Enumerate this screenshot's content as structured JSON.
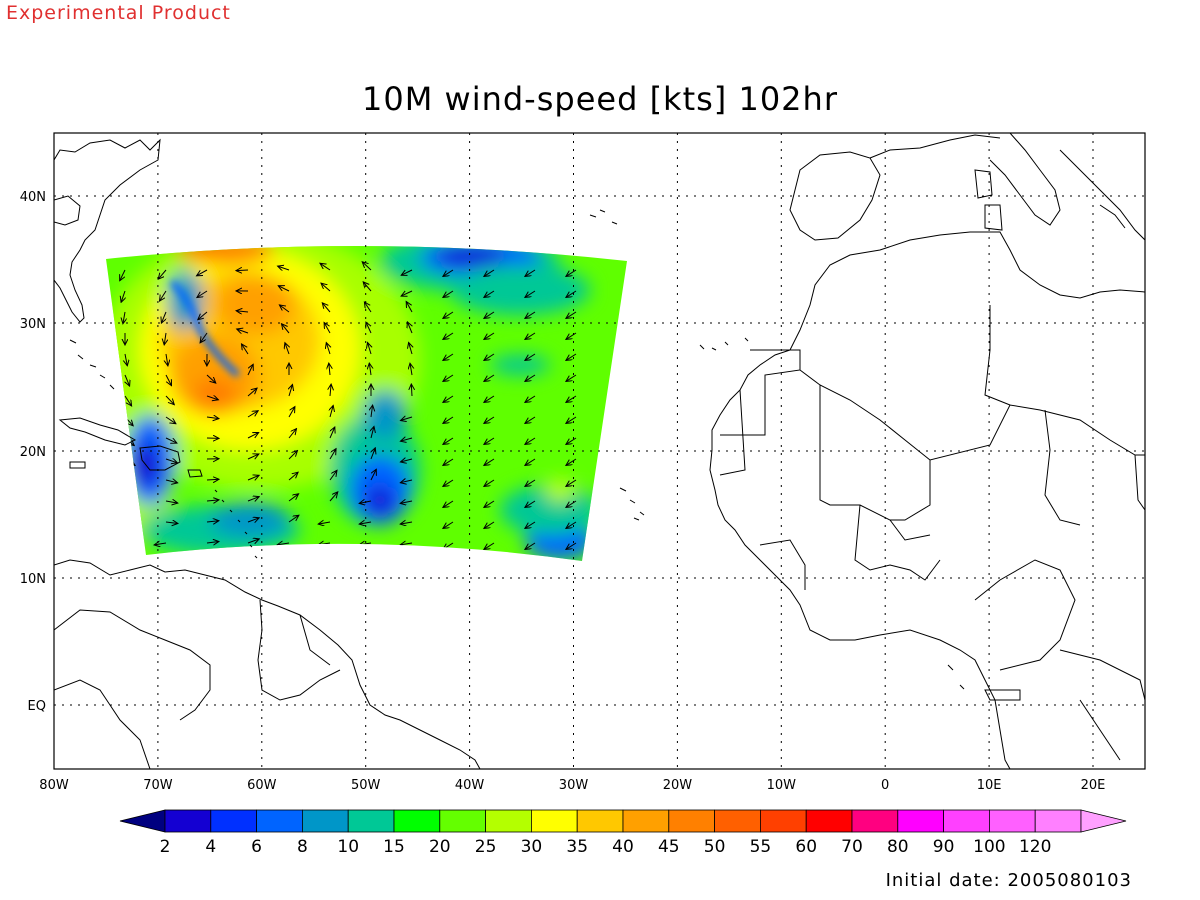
{
  "header": {
    "experimental": "Experimental Product"
  },
  "title": "10M wind-speed [kts] 102hr",
  "footer": {
    "initial_date": "Initial date: 2005080103"
  },
  "axes": {
    "lon_labels": [
      "80W",
      "70W",
      "60W",
      "50W",
      "40W",
      "30W",
      "20W",
      "10W",
      "0",
      "10E",
      "20E"
    ],
    "lat_labels": [
      "40N",
      "30N",
      "20N",
      "10N",
      "EQ"
    ]
  },
  "colorbar": {
    "labels": [
      "2",
      "4",
      "6",
      "8",
      "10",
      "15",
      "20",
      "25",
      "30",
      "35",
      "40",
      "45",
      "50",
      "55",
      "60",
      "70",
      "80",
      "90",
      "100",
      "120"
    ],
    "colors": [
      "#1400d2",
      "#0030ff",
      "#0064ff",
      "#0096c8",
      "#00c896",
      "#00ff00",
      "#64ff00",
      "#b4ff00",
      "#ffff00",
      "#ffc800",
      "#ffa000",
      "#ff8000",
      "#ff6000",
      "#ff4000",
      "#ff0000",
      "#ff0080",
      "#ff00ff",
      "#ff40ff",
      "#ff60ff",
      "#ff80ff"
    ],
    "under_color": "#000080",
    "over_color": "#ffa0ff"
  },
  "field": {
    "background_color": "#5fff00"
  }
}
